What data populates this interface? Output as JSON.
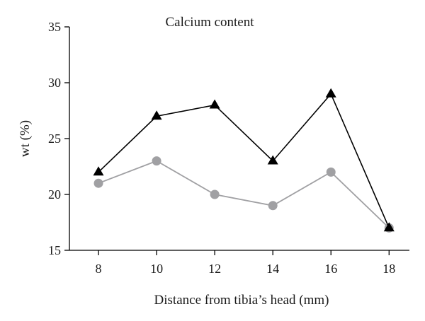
{
  "chart_data": {
    "type": "line",
    "title": "Calcium content",
    "xlabel": "Distance from tibia’s head (mm)",
    "ylabel": "wt (%)",
    "x": [
      8,
      10,
      12,
      14,
      16,
      18
    ],
    "xticks": [
      "8",
      "10",
      "12",
      "14",
      "16",
      "18"
    ],
    "yticks": [
      "15",
      "20",
      "25",
      "30",
      "35"
    ],
    "xlim": [
      7,
      18.7
    ],
    "ylim": [
      15,
      35
    ],
    "grid": false,
    "legend": "none",
    "series": [
      {
        "values": [
          22,
          27,
          28,
          23,
          29,
          17
        ],
        "marker": "triangle",
        "color": "#000000"
      },
      {
        "values": [
          21,
          23,
          20,
          19,
          22,
          17
        ],
        "marker": "circle",
        "color": "#a0a0a3"
      }
    ]
  }
}
